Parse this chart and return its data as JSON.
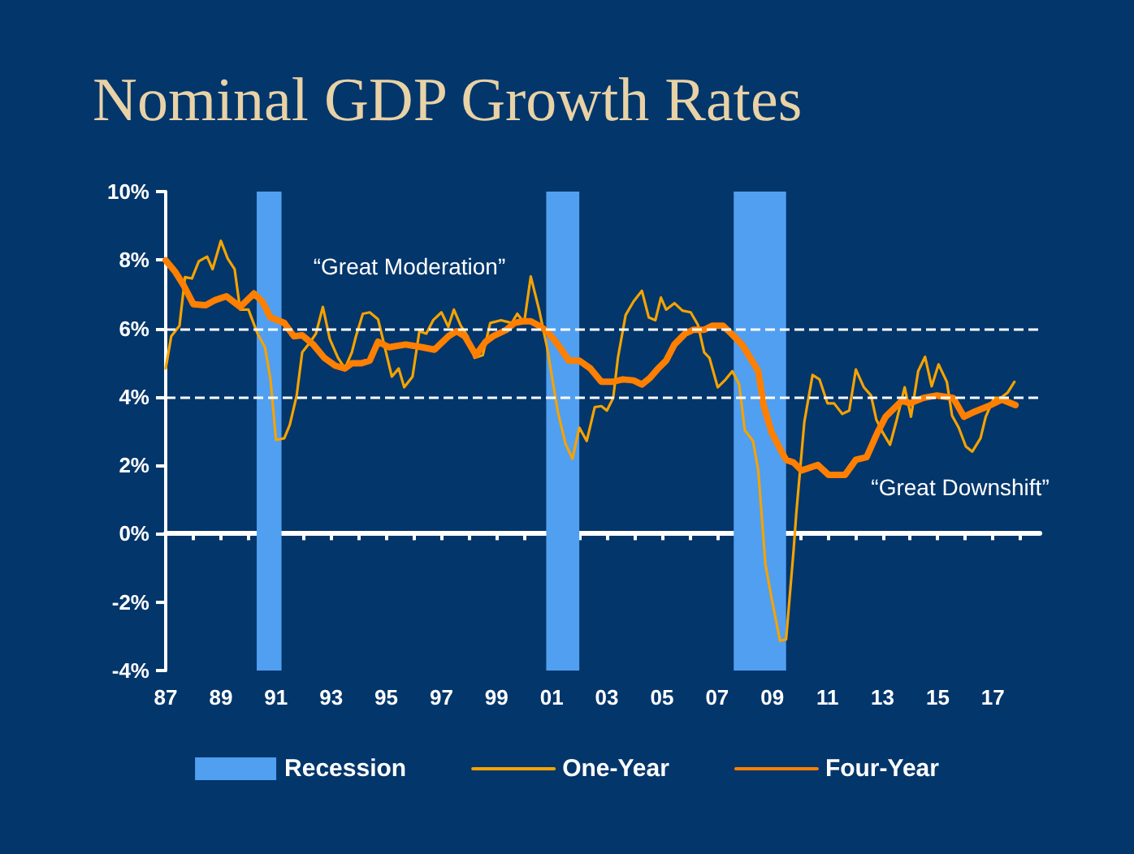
{
  "chart_data": {
    "type": "line",
    "title": "Nominal GDP Growth Rates",
    "xlim": [
      1987,
      2018.7
    ],
    "xticks": [
      {
        "value": 1987,
        "label": "87"
      },
      {
        "value": 1988,
        "label": null
      },
      {
        "value": 1989,
        "label": "89"
      },
      {
        "value": 1990,
        "label": null
      },
      {
        "value": 1991,
        "label": "91"
      },
      {
        "value": 1992,
        "label": null
      },
      {
        "value": 1993,
        "label": "93"
      },
      {
        "value": 1994,
        "label": null
      },
      {
        "value": 1995,
        "label": "95"
      },
      {
        "value": 1996,
        "label": null
      },
      {
        "value": 1997,
        "label": "97"
      },
      {
        "value": 1998,
        "label": null
      },
      {
        "value": 1999,
        "label": "99"
      },
      {
        "value": 2000,
        "label": null
      },
      {
        "value": 2001,
        "label": "01"
      },
      {
        "value": 2002,
        "label": null
      },
      {
        "value": 2003,
        "label": "03"
      },
      {
        "value": 2004,
        "label": null
      },
      {
        "value": 2005,
        "label": "05"
      },
      {
        "value": 2006,
        "label": null
      },
      {
        "value": 2007,
        "label": "07"
      },
      {
        "value": 2008,
        "label": null
      },
      {
        "value": 2009,
        "label": "09"
      },
      {
        "value": 2010,
        "label": null
      },
      {
        "value": 2011,
        "label": "11"
      },
      {
        "value": 2012,
        "label": null
      },
      {
        "value": 2013,
        "label": "13"
      },
      {
        "value": 2014,
        "label": null
      },
      {
        "value": 2015,
        "label": "15"
      },
      {
        "value": 2016,
        "label": null
      },
      {
        "value": 2017,
        "label": "17"
      },
      {
        "value": 2018,
        "label": null
      }
    ],
    "ylim": [
      -4,
      10
    ],
    "yticks": [
      {
        "value": -4,
        "label": "-4%"
      },
      {
        "value": -2,
        "label": "-2%"
      },
      {
        "value": 0,
        "label": "0%"
      },
      {
        "value": 2,
        "label": "2%"
      },
      {
        "value": 4,
        "label": "4%"
      },
      {
        "value": 6,
        "label": "6%"
      },
      {
        "value": 8,
        "label": "8%"
      },
      {
        "value": 10,
        "label": "10%"
      }
    ],
    "grid": false,
    "legend": "bottom",
    "series": [
      {
        "name": "One-Year",
        "color": "#f5a300",
        "x": [
          1987.0,
          1987.2,
          1987.5,
          1987.7,
          1987.95,
          1988.2,
          1988.5,
          1988.7,
          1989.0,
          1989.25,
          1989.5,
          1989.7,
          1990.0,
          1990.33,
          1990.6,
          1990.8,
          1991.0,
          1991.3,
          1991.5,
          1991.75,
          1991.95,
          1992.25,
          1992.45,
          1992.7,
          1992.95,
          1993.25,
          1993.5,
          1993.75,
          1993.9,
          1994.15,
          1994.4,
          1994.7,
          1994.9,
          1995.2,
          1995.45,
          1995.65,
          1995.95,
          1996.2,
          1996.45,
          1996.7,
          1997.0,
          1997.25,
          1997.45,
          1997.7,
          1997.95,
          1998.2,
          1998.5,
          1998.77,
          1999.16,
          1999.55,
          1999.75,
          2000.0,
          2000.24,
          2000.54,
          2000.83,
          2001.22,
          2001.5,
          2001.75,
          2002.0,
          2002.27,
          2002.56,
          2002.8,
          2003.0,
          2003.23,
          2003.4,
          2003.68,
          2003.97,
          2004.27,
          2004.52,
          2004.76,
          2004.96,
          2005.15,
          2005.45,
          2005.74,
          2006.04,
          2006.3,
          2006.53,
          2006.72,
          2007.02,
          2007.31,
          2007.55,
          2007.8,
          2008.0,
          2008.3,
          2008.49,
          2008.75,
          2008.98,
          2009.28,
          2009.5,
          2009.77,
          2009.87,
          2010.16,
          2010.46,
          2010.71,
          2011.0,
          2011.24,
          2011.54,
          2011.79,
          2012.03,
          2012.32,
          2012.58,
          2012.77,
          2013.01,
          2013.27,
          2013.5,
          2013.8,
          2014.03,
          2014.29,
          2014.54,
          2014.78,
          2015.03,
          2015.33,
          2015.52,
          2015.76,
          2016.02,
          2016.25,
          2016.55,
          2016.74,
          2017.04,
          2017.29,
          2017.53,
          2017.78
        ],
        "values": [
          4.83,
          5.77,
          6.08,
          7.5,
          7.46,
          7.96,
          8.1,
          7.73,
          8.56,
          8.04,
          7.73,
          6.55,
          6.55,
          5.85,
          5.45,
          4.51,
          2.74,
          2.79,
          3.18,
          4.04,
          5.3,
          5.61,
          5.85,
          6.63,
          5.69,
          5.14,
          4.83,
          5.3,
          5.77,
          6.43,
          6.47,
          6.27,
          5.61,
          4.59,
          4.83,
          4.28,
          4.59,
          5.92,
          5.85,
          6.24,
          6.47,
          6.05,
          6.55,
          6.08,
          5.77,
          5.14,
          5.22,
          6.16,
          6.24,
          6.16,
          6.43,
          6.16,
          7.52,
          6.55,
          5.45,
          3.57,
          2.63,
          2.19,
          3.1,
          2.71,
          3.7,
          3.73,
          3.6,
          3.97,
          5.14,
          6.39,
          6.79,
          7.1,
          6.32,
          6.24,
          6.9,
          6.55,
          6.74,
          6.52,
          6.47,
          6.11,
          5.3,
          5.14,
          4.28,
          4.51,
          4.75,
          4.36,
          3.03,
          2.71,
          1.85,
          -0.89,
          -1.91,
          -3.13,
          -3.09,
          -0.5,
          0.6,
          3.26,
          4.64,
          4.51,
          3.81,
          3.81,
          3.5,
          3.6,
          4.8,
          4.28,
          4.04,
          3.34,
          2.95,
          2.6,
          3.29,
          4.28,
          3.42,
          4.75,
          5.17,
          4.31,
          4.95,
          4.44,
          3.45,
          3.1,
          2.55,
          2.4,
          2.79,
          3.42,
          3.97,
          3.97,
          4.12,
          4.44
        ]
      },
      {
        "name": "Four-Year",
        "color": "#ff7f00",
        "x": [
          1987.0,
          1987.35,
          1987.65,
          1988.0,
          1988.45,
          1988.8,
          1989.2,
          1989.7,
          1990.2,
          1990.5,
          1990.8,
          1991.3,
          1991.65,
          1991.95,
          1992.35,
          1992.75,
          1993.15,
          1993.5,
          1993.75,
          1994.1,
          1994.4,
          1994.7,
          1995.1,
          1995.7,
          1996.3,
          1996.75,
          1997.25,
          1997.55,
          1997.85,
          1998.25,
          1998.6,
          1998.87,
          1999.36,
          1999.65,
          1999.95,
          2000.24,
          2000.54,
          2000.83,
          2001.22,
          2001.62,
          2002.0,
          2002.4,
          2002.8,
          2003.19,
          2003.58,
          2003.97,
          2004.27,
          2004.56,
          2004.86,
          2005.15,
          2005.45,
          2005.84,
          2006.13,
          2006.53,
          2006.82,
          2007.21,
          2007.51,
          2007.9,
          2008.2,
          2008.49,
          2008.69,
          2008.98,
          2009.28,
          2009.5,
          2009.77,
          2010.06,
          2010.65,
          2011.04,
          2011.64,
          2012.03,
          2012.42,
          2012.81,
          2013.11,
          2013.4,
          2013.7,
          2013.99,
          2014.48,
          2014.97,
          2015.56,
          2015.95,
          2016.35,
          2016.84,
          2017.33,
          2017.82
        ],
        "values": [
          7.99,
          7.65,
          7.26,
          6.71,
          6.68,
          6.83,
          6.94,
          6.63,
          7.02,
          6.79,
          6.32,
          6.16,
          5.77,
          5.8,
          5.53,
          5.14,
          4.91,
          4.83,
          4.98,
          4.98,
          5.06,
          5.61,
          5.45,
          5.53,
          5.45,
          5.38,
          5.77,
          5.92,
          5.77,
          5.22,
          5.61,
          5.77,
          5.96,
          6.16,
          6.21,
          6.21,
          6.08,
          5.92,
          5.53,
          5.06,
          5.06,
          4.83,
          4.44,
          4.44,
          4.51,
          4.48,
          4.36,
          4.55,
          4.83,
          5.06,
          5.53,
          5.85,
          5.96,
          5.96,
          6.08,
          6.08,
          5.85,
          5.53,
          5.14,
          4.75,
          3.73,
          2.95,
          2.48,
          2.16,
          2.08,
          1.85,
          2.01,
          1.72,
          1.72,
          2.16,
          2.24,
          2.95,
          3.42,
          3.65,
          3.89,
          3.81,
          3.97,
          4.04,
          3.97,
          3.42,
          3.57,
          3.73,
          3.92,
          3.76
        ]
      }
    ],
    "bands": [
      {
        "axis": "x",
        "from": 1990.3,
        "to": 1991.2,
        "label": "Recession",
        "color": "#519ff0"
      },
      {
        "axis": "x",
        "from": 2000.8,
        "to": 2002.0,
        "color": "#519ff0"
      },
      {
        "axis": "x",
        "from": 2007.6,
        "to": 2009.5,
        "color": "#519ff0"
      }
    ],
    "ref_lines": [
      {
        "axis": "y",
        "value": 6,
        "color": "#ffffff",
        "line_style": "dashed"
      },
      {
        "axis": "y",
        "value": 4,
        "color": "#ffffff",
        "line_style": "dashed"
      }
    ],
    "annotations": [
      "“Great Moderation”",
      "“Great Downshift”"
    ]
  }
}
